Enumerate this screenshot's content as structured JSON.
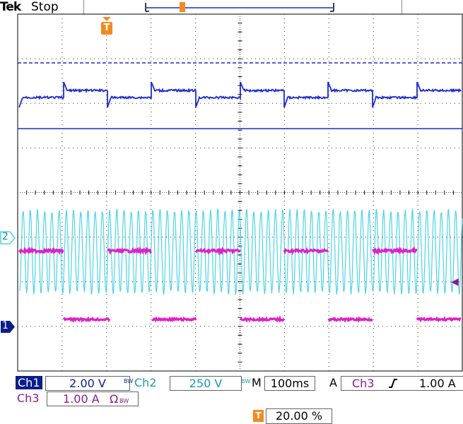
{
  "header": {
    "brand": "Tek",
    "acquisition_state": "Stop"
  },
  "markers": {
    "trigger_position": "T",
    "ch1_ground": "1",
    "ch2_ground": "2",
    "trigger_level_arrow": "◀"
  },
  "readouts": {
    "ch1": {
      "label": "Ch1",
      "scale": "2.00 V",
      "bw": "BW"
    },
    "ch2": {
      "label": "Ch2",
      "scale": "250 V",
      "bw": "BW"
    },
    "horizontal": {
      "label": "M",
      "scale": "100ms"
    },
    "trigger": {
      "mode": "A",
      "source": "Ch3",
      "slope_icon": "rising-edge",
      "level": "1.00 A"
    },
    "ch3": {
      "label": "Ch3",
      "scale": "1.00 A",
      "impedance": "Ω",
      "bw": "BW"
    },
    "trigger_position": {
      "icon": "T",
      "value": "20.00 %"
    }
  },
  "colors": {
    "ch1": "#1c2bd0",
    "ch2": "#4ad4e8",
    "ch3": "#e020c8",
    "trigger": "#f28a1e",
    "grid": "#333333"
  }
}
